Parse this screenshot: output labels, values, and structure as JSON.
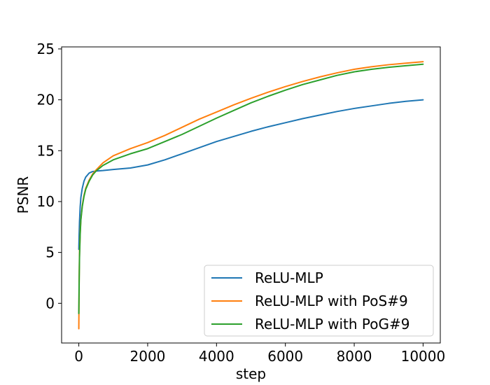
{
  "chart_data": {
    "type": "line",
    "title": "",
    "xlabel": "step",
    "ylabel": "PSNR",
    "xlim": [
      -500,
      10500
    ],
    "ylim": [
      -3.9,
      25.2
    ],
    "xticks": [
      0,
      2000,
      4000,
      6000,
      8000,
      10000
    ],
    "xtick_labels": [
      "0",
      "2000",
      "4000",
      "6000",
      "8000",
      "10000"
    ],
    "yticks": [
      0,
      5,
      10,
      15,
      20,
      25
    ],
    "ytick_labels": [
      "0",
      "5",
      "10",
      "15",
      "20",
      "25"
    ],
    "grid": false,
    "legend_position": "lower-right",
    "series": [
      {
        "name": "ReLU-MLP",
        "color": "#1f77b4",
        "x": [
          0,
          10,
          20,
          40,
          60,
          100,
          150,
          200,
          300,
          400,
          500,
          700,
          1000,
          1500,
          2000,
          2500,
          3000,
          3500,
          4000,
          4500,
          5000,
          5500,
          6000,
          6500,
          7000,
          7500,
          8000,
          8500,
          9000,
          9500,
          10000
        ],
        "y": [
          5.3,
          6.8,
          8.0,
          9.5,
          10.4,
          11.3,
          12.0,
          12.4,
          12.8,
          12.95,
          13.0,
          13.05,
          13.15,
          13.3,
          13.6,
          14.1,
          14.7,
          15.3,
          15.9,
          16.4,
          16.9,
          17.35,
          17.75,
          18.15,
          18.5,
          18.85,
          19.15,
          19.4,
          19.65,
          19.85,
          20.0
        ]
      },
      {
        "name": "ReLU-MLP with PoS#9",
        "color": "#ff7f0e",
        "x": [
          0,
          10,
          20,
          40,
          60,
          100,
          150,
          200,
          300,
          400,
          500,
          700,
          1000,
          1500,
          2000,
          2500,
          3000,
          3500,
          4000,
          4500,
          5000,
          5500,
          6000,
          6500,
          7000,
          7500,
          8000,
          8500,
          9000,
          9500,
          10000
        ],
        "y": [
          -2.5,
          2.5,
          4.8,
          7.0,
          8.3,
          9.6,
          10.6,
          11.3,
          12.1,
          12.7,
          13.1,
          13.8,
          14.5,
          15.2,
          15.8,
          16.5,
          17.3,
          18.1,
          18.8,
          19.5,
          20.15,
          20.75,
          21.3,
          21.8,
          22.25,
          22.65,
          23.0,
          23.25,
          23.45,
          23.6,
          23.75
        ]
      },
      {
        "name": "ReLU-MLP with PoG#9",
        "color": "#2ca02c",
        "x": [
          0,
          10,
          20,
          40,
          60,
          100,
          150,
          200,
          300,
          400,
          500,
          700,
          1000,
          1500,
          2000,
          2500,
          3000,
          3500,
          4000,
          4500,
          5000,
          5500,
          6000,
          6500,
          7000,
          7500,
          8000,
          8500,
          9000,
          9500,
          10000
        ],
        "y": [
          -1.0,
          2.0,
          4.5,
          6.8,
          8.2,
          9.5,
          10.5,
          11.2,
          12.0,
          12.6,
          13.0,
          13.55,
          14.1,
          14.7,
          15.2,
          15.9,
          16.6,
          17.4,
          18.2,
          18.95,
          19.7,
          20.35,
          20.95,
          21.5,
          21.95,
          22.4,
          22.75,
          23.0,
          23.2,
          23.35,
          23.5
        ]
      }
    ]
  }
}
